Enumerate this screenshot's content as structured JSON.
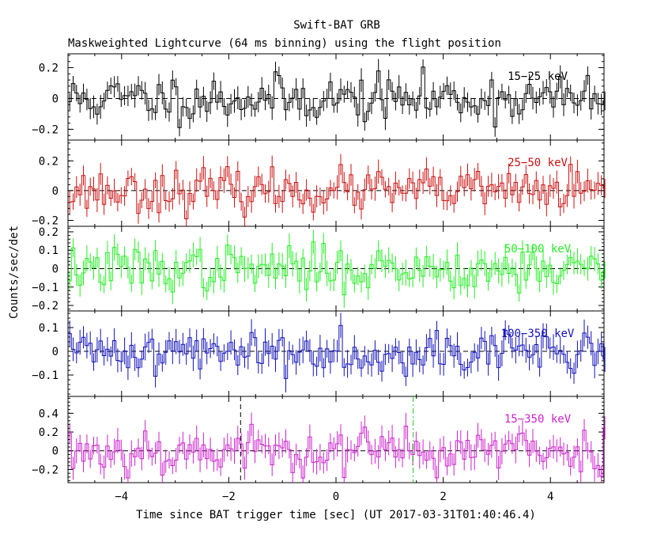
{
  "chart_data": {
    "type": "line",
    "title": "Swift-BAT GRB",
    "subtitle": "Maskweighted Lightcurve (64 ms binning) using the flight position",
    "xlabel": "Time since BAT trigger time [sec] (UT 2017-03-31T01:40:46.4)",
    "ylabel": "Counts/sec/det",
    "xlim": [
      -5,
      5
    ],
    "xticks": [
      -4,
      -2,
      0,
      2,
      4
    ],
    "xtick_labels": [
      "−4",
      "−2",
      "0",
      "2",
      "4"
    ],
    "bin_width_sec": 0.064,
    "marker_lines": [
      {
        "x": -1.78,
        "color": "#000000",
        "panel": "15-350 keV",
        "style": "dashed"
      },
      {
        "x": 1.44,
        "color": "#22cc22",
        "panel": "15-350 keV",
        "style": "dash-dot"
      }
    ],
    "panels": [
      {
        "band": "15−25 keV",
        "color": "#000000",
        "ylim": [
          -0.27,
          0.29
        ],
        "yticks": [
          -0.2,
          0,
          0.2
        ],
        "ytick_labels": [
          "−0.2",
          "0",
          "0.2"
        ],
        "amp": 0.075,
        "err": 0.06,
        "seed": 11
      },
      {
        "band": "25−50 keV",
        "color": "#cc1111",
        "ylim": [
          -0.24,
          0.34
        ],
        "yticks": [
          -0.2,
          0,
          0.2
        ],
        "ytick_labels": [
          "−0.2",
          "0",
          "0.2"
        ],
        "amp": 0.07,
        "err": 0.065,
        "seed": 23
      },
      {
        "band": "50−100 keV",
        "color": "#22ee22",
        "ylim": [
          -0.23,
          0.23
        ],
        "yticks": [
          -0.2,
          -0.1,
          0,
          0.1,
          0.2
        ],
        "ytick_labels": [
          "−0.2",
          "−0.1",
          "0",
          "0.1",
          "0.2"
        ],
        "amp": 0.06,
        "err": 0.055,
        "seed": 37
      },
      {
        "band": "100−350 keV",
        "color": "#1111bb",
        "ylim": [
          -0.19,
          0.17
        ],
        "yticks": [
          -0.1,
          0,
          0.1
        ],
        "ytick_labels": [
          "−0.1",
          "0",
          "0.1"
        ],
        "amp": 0.045,
        "err": 0.045,
        "seed": 41
      },
      {
        "band": "15−350 keV",
        "color": "#cc22cc",
        "ylim": [
          -0.34,
          0.58
        ],
        "yticks": [
          -0.2,
          0,
          0.2,
          0.4
        ],
        "ytick_labels": [
          "−0.2",
          "0",
          "0.2",
          "0.4"
        ],
        "amp": 0.13,
        "err": 0.11,
        "seed": 53
      }
    ]
  }
}
